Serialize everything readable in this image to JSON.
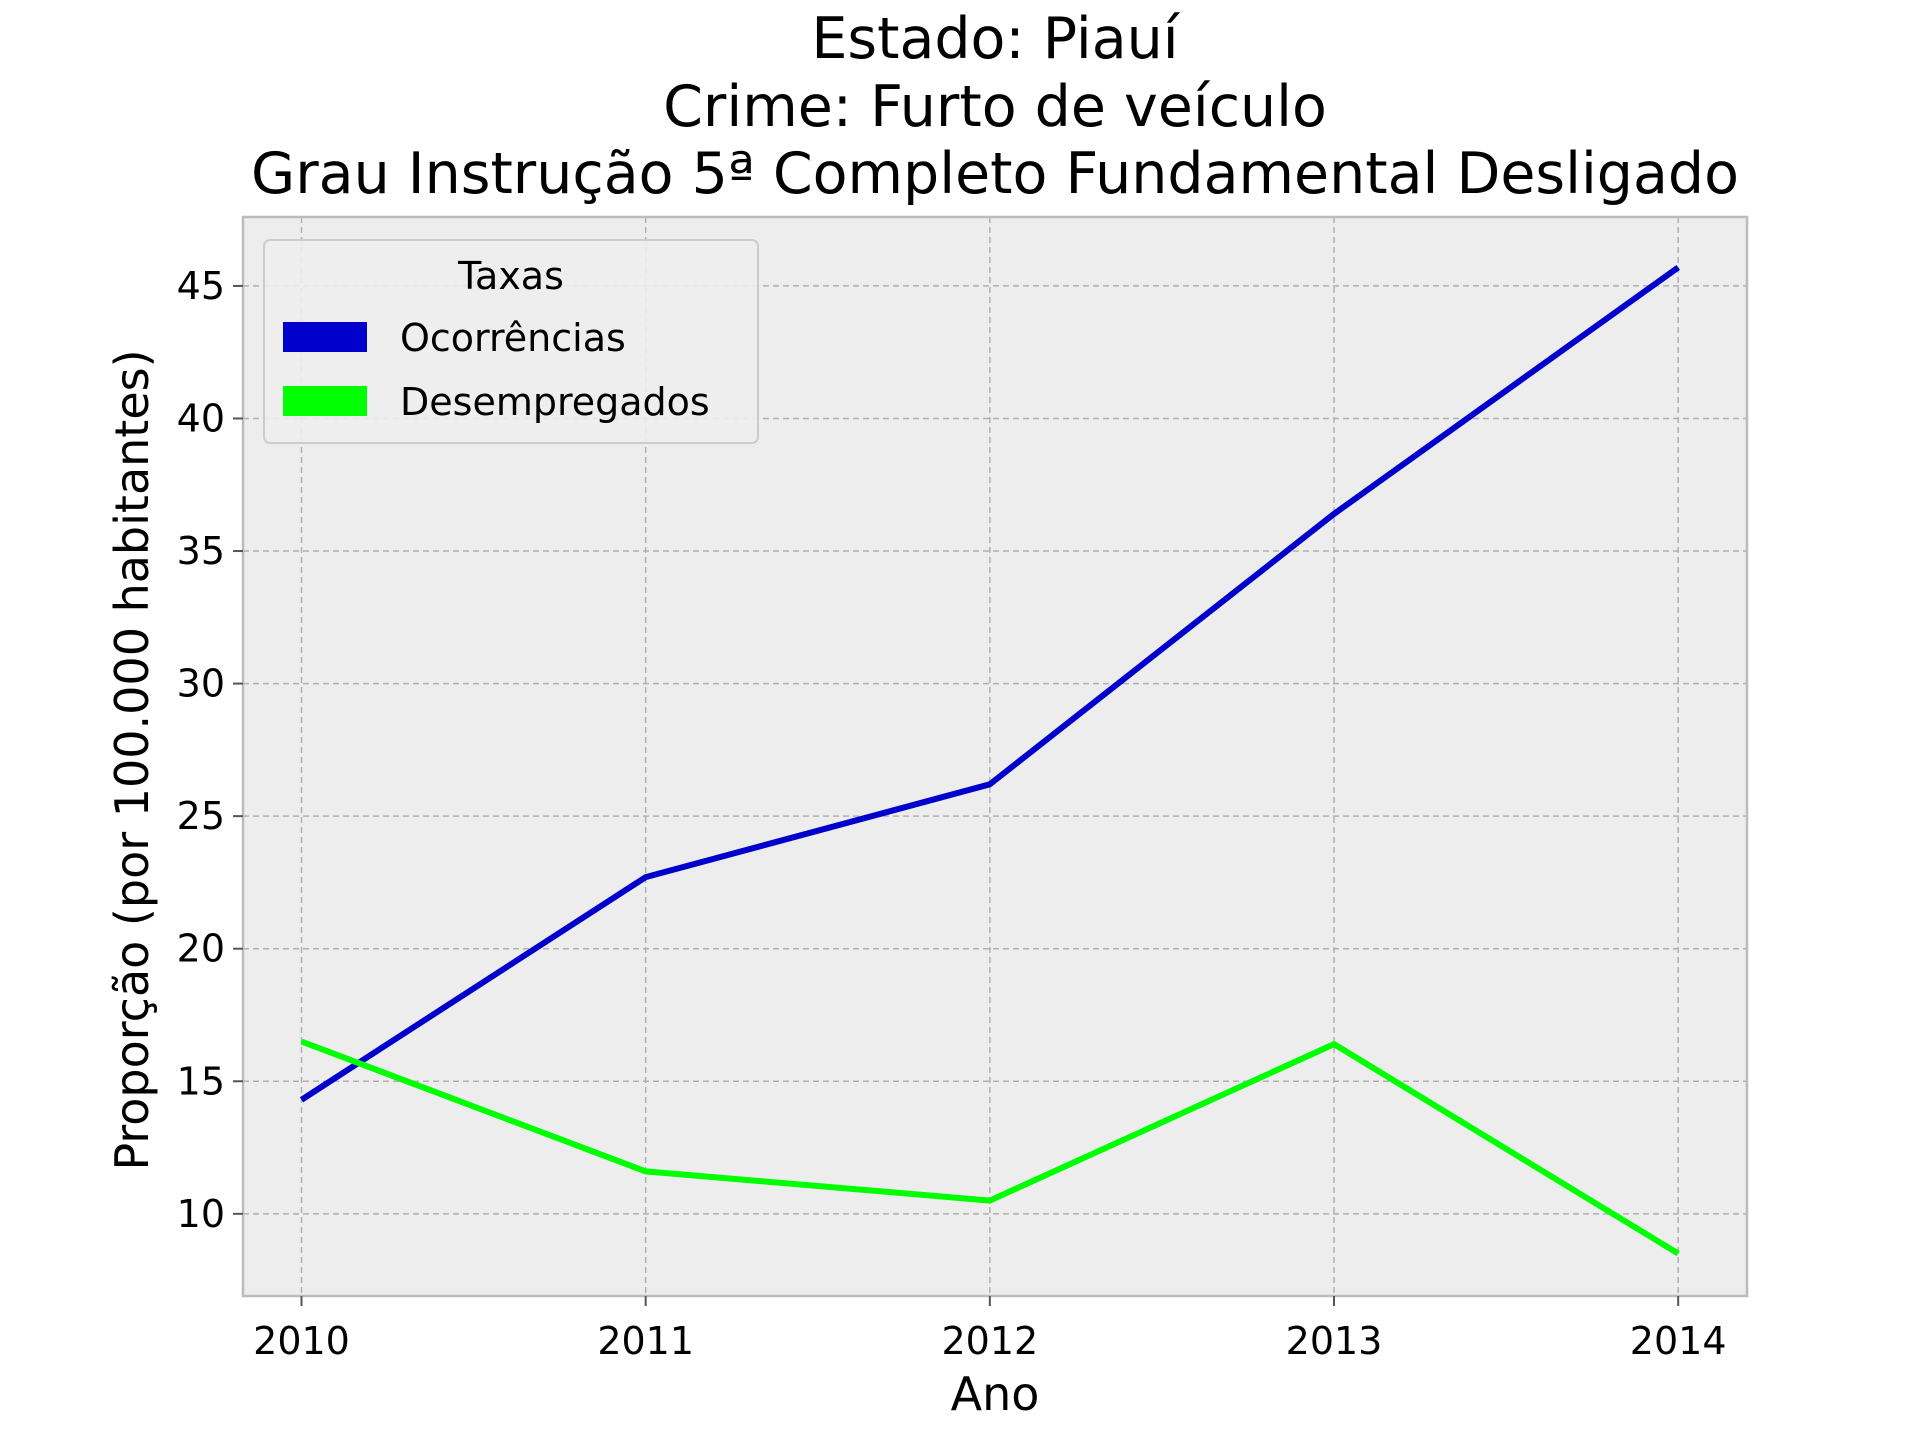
{
  "chart_data": {
    "type": "line",
    "title_lines": [
      "Estado: Piauí",
      "Crime: Furto de veículo",
      "Grau Instrução  5ª Completo Fundamental   Desligado"
    ],
    "xlabel": "Ano",
    "ylabel": "Proporção (por 100.000 habitantes)",
    "x": [
      2010,
      2011,
      2012,
      2013,
      2014
    ],
    "x_tick_labels": [
      "2010",
      "2011",
      "2012",
      "2013",
      "2014"
    ],
    "xlim": [
      2009.83,
      2014.2
    ],
    "ylim": [
      6.9,
      47.6
    ],
    "y_ticks": [
      10,
      15,
      20,
      25,
      30,
      35,
      40,
      45
    ],
    "y_tick_labels": [
      "10",
      "15",
      "20",
      "25",
      "30",
      "35",
      "40",
      "45"
    ],
    "grid": true,
    "legend": {
      "title": "Taxas",
      "placement": "top-left"
    },
    "series": [
      {
        "name": "Ocorrências",
        "color": "#0000cc",
        "values": [
          14.3,
          22.7,
          26.2,
          36.4,
          45.7
        ]
      },
      {
        "name": "Desempregados",
        "color": "#00ff00",
        "values": [
          16.5,
          11.6,
          10.5,
          16.4,
          8.5
        ]
      }
    ],
    "colors": {
      "plot_background": "#ededed",
      "grid": "#b0b0b0",
      "frame": "#bcbcbc"
    }
  }
}
